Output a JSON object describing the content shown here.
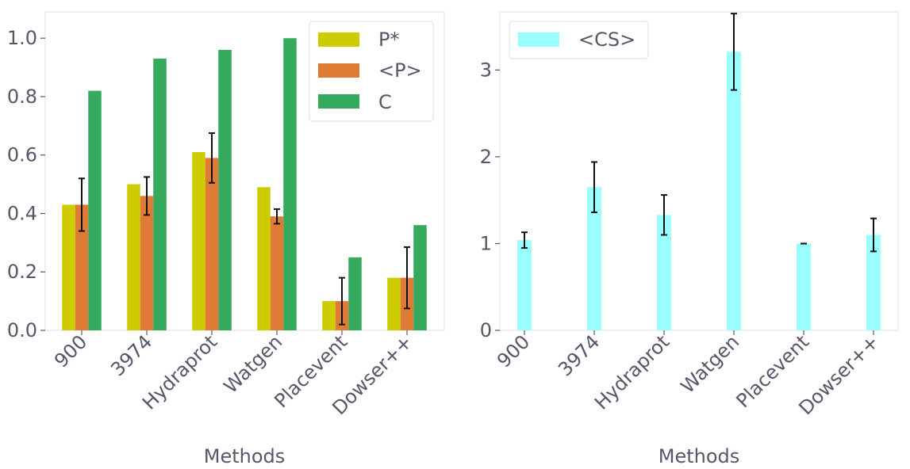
{
  "chart_data": [
    {
      "type": "bar",
      "categories": [
        "900",
        "3974",
        "Hydraprot",
        "Watgen",
        "Placevent",
        "Dowser++"
      ],
      "series": [
        {
          "name": "P*",
          "color": "#cccc00",
          "values": [
            0.43,
            0.5,
            0.61,
            0.49,
            0.1,
            0.18
          ]
        },
        {
          "name": "<P>",
          "color": "#e07b35",
          "values": [
            0.43,
            0.46,
            0.59,
            0.39,
            0.1,
            0.18
          ],
          "err": [
            0.09,
            0.065,
            0.085,
            0.025,
            0.08,
            0.105
          ]
        },
        {
          "name": "C",
          "color": "#35a95c",
          "values": [
            0.82,
            0.93,
            0.96,
            1.0,
            0.25,
            0.36
          ]
        }
      ],
      "xlabel": "Methods",
      "ylabel": "",
      "ylim": [
        0,
        1.09
      ],
      "yticks": [
        "0.0",
        "0.2",
        "0.4",
        "0.6",
        "0.8",
        "1.0"
      ],
      "ytick_values": [
        0,
        0.2,
        0.4,
        0.6,
        0.8,
        1.0
      ],
      "legend": "top-right",
      "grid": false
    },
    {
      "type": "bar",
      "categories": [
        "900",
        "3974",
        "Hydraprot",
        "Watgen",
        "Placevent",
        "Dowser++"
      ],
      "series": [
        {
          "name": "<CS>",
          "color": "#99ffff",
          "values": [
            1.04,
            1.65,
            1.33,
            3.21,
            1.0,
            1.1
          ],
          "err": [
            0.09,
            0.29,
            0.23,
            0.44,
            0.0,
            0.19
          ]
        }
      ],
      "xlabel": "Methods",
      "ylabel": "",
      "ylim": [
        0,
        3.67
      ],
      "yticks": [
        "0",
        "1",
        "2",
        "3"
      ],
      "ytick_values": [
        0,
        1,
        2,
        3
      ],
      "legend": "top-left",
      "grid": false
    }
  ]
}
